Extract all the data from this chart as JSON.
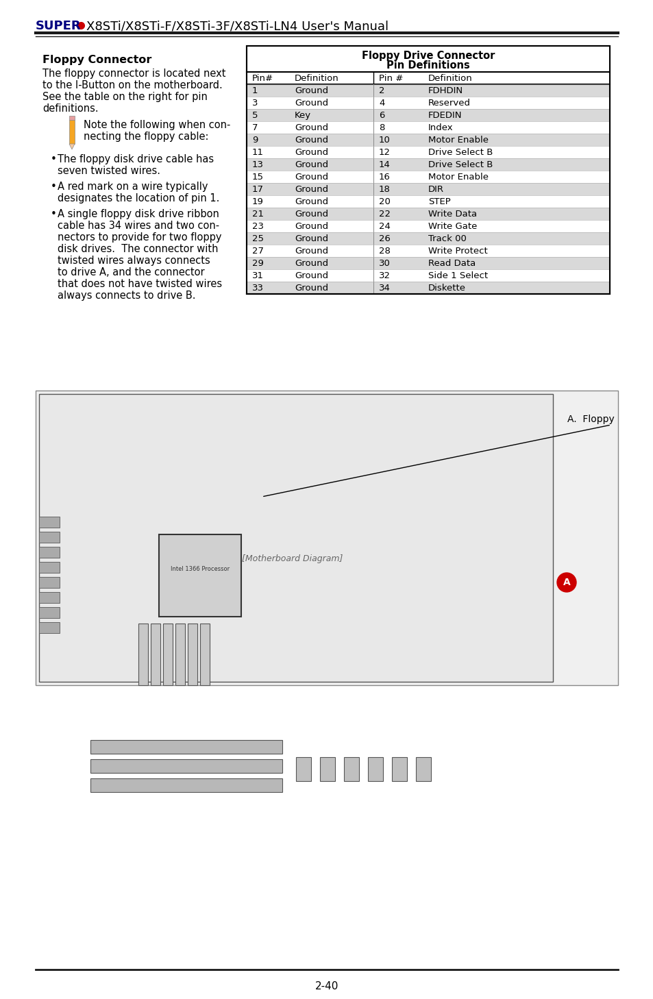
{
  "page_title": "SUPER●X8STi/X8STi-F/X8STi-3F/X8STi-LN4 User's Manual",
  "super_text": "SUPER",
  "dot_color": "#cc0000",
  "title_color": "#000080",
  "section_title": "Floppy Connector",
  "body_text_1": "The floppy connector is located next\nto the I-Button on the motherboard.\nSee the table on the right for pin\ndefinitions.",
  "note_text": "Note the following when con-\nnecting the floppy cable:",
  "bullet_points": [
    "The floppy disk drive cable has\nseven twisted wires.",
    "A red mark on a wire typically\ndesignates the location of pin 1.",
    "A single floppy disk drive ribbon\ncable has 34 wires and two con-\nnectors to provide for two floppy\ndisk drives.  The connector with\ntwisted wires always connects\nto drive A, and the connector\nthat does not have twisted wires\nalways connects to drive B."
  ],
  "table_title_1": "Floppy Drive Connector",
  "table_title_2": "Pin Definitions",
  "table_headers": [
    "Pin#",
    "Definition",
    "Pin #",
    "Definition"
  ],
  "table_rows": [
    [
      "1",
      "Ground",
      "2",
      "FDHDIN"
    ],
    [
      "3",
      "Ground",
      "4",
      "Reserved"
    ],
    [
      "5",
      "Key",
      "6",
      "FDEDIN"
    ],
    [
      "7",
      "Ground",
      "8",
      "Index"
    ],
    [
      "9",
      "Ground",
      "10",
      "Motor Enable"
    ],
    [
      "11",
      "Ground",
      "12",
      "Drive Select B"
    ],
    [
      "13",
      "Ground",
      "14",
      "Drive Select B"
    ],
    [
      "15",
      "Ground",
      "16",
      "Motor Enable"
    ],
    [
      "17",
      "Ground",
      "18",
      "DIR"
    ],
    [
      "19",
      "Ground",
      "20",
      "STEP"
    ],
    [
      "21",
      "Ground",
      "22",
      "Write Data"
    ],
    [
      "23",
      "Ground",
      "24",
      "Write Gate"
    ],
    [
      "25",
      "Ground",
      "26",
      "Track 00"
    ],
    [
      "27",
      "Ground",
      "28",
      "Write Protect"
    ],
    [
      "29",
      "Ground",
      "30",
      "Read Data"
    ],
    [
      "31",
      "Ground",
      "32",
      "Side 1 Select"
    ],
    [
      "33",
      "Ground",
      "34",
      "Diskette"
    ]
  ],
  "row_shaded_color": "#d9d9d9",
  "row_white_color": "#ffffff",
  "table_border_color": "#000000",
  "page_number": "2-40",
  "diagram_label": "A.  Floppy",
  "bg_color": "#ffffff"
}
